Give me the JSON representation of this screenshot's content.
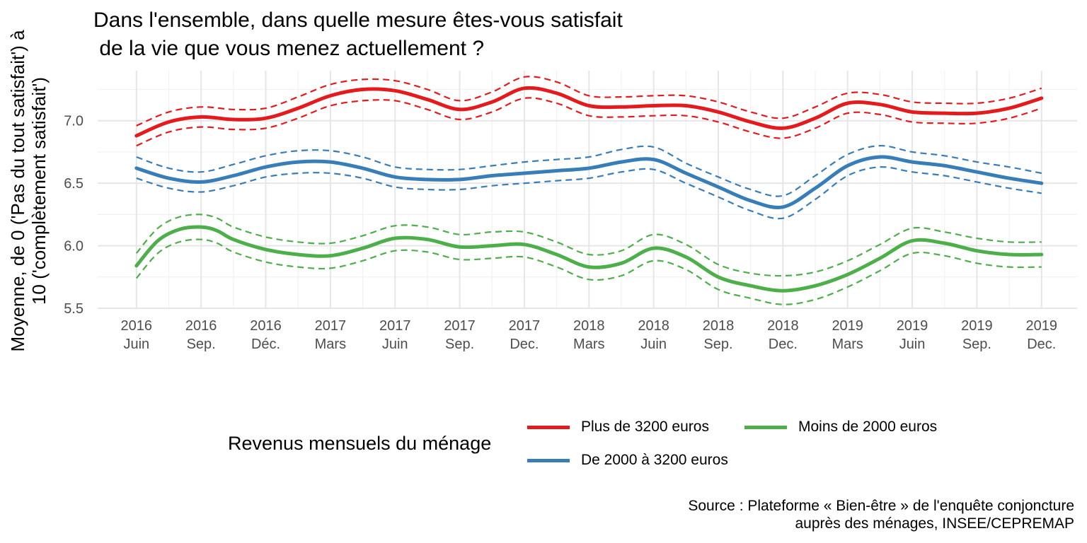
{
  "chart_data": {
    "type": "line",
    "title": [
      "Dans l'ensemble, dans quelle mesure êtes-vous satisfait",
      " de la vie que vous menez actuellement ?"
    ],
    "ylabel": [
      "Moyenne, de 0 ('Pas du tout satisfait') à",
      "10 ('complètement satisfait')"
    ],
    "xlabel": "",
    "ylim": [
      5.5,
      7.4
    ],
    "yticks": [
      5.5,
      6.0,
      6.5,
      7.0
    ],
    "ytick_labels": [
      "5.5",
      "6.0",
      "6.5",
      "7.0"
    ],
    "xlim": [
      -0.6,
      14.55
    ],
    "xticks": [
      {
        "x": 0,
        "year": "2016",
        "month": "Juin"
      },
      {
        "x": 1,
        "year": "2016",
        "month": "Sep."
      },
      {
        "x": 2,
        "year": "2016",
        "month": "Déc."
      },
      {
        "x": 3,
        "year": "2017",
        "month": "Mars"
      },
      {
        "x": 4,
        "year": "2017",
        "month": "Juin"
      },
      {
        "x": 5,
        "year": "2017",
        "month": "Sep."
      },
      {
        "x": 6,
        "year": "2017",
        "month": "Dec."
      },
      {
        "x": 7,
        "year": "2018",
        "month": "Mars"
      },
      {
        "x": 8,
        "year": "2018",
        "month": "Juin"
      },
      {
        "x": 9,
        "year": "2018",
        "month": "Sep."
      },
      {
        "x": 10,
        "year": "2018",
        "month": "Dec."
      },
      {
        "x": 11,
        "year": "2019",
        "month": "Mars"
      },
      {
        "x": 12,
        "year": "2019",
        "month": "Juin"
      },
      {
        "x": 13,
        "year": "2019",
        "month": "Sep."
      },
      {
        "x": 14,
        "year": "2019",
        "month": "Dec."
      }
    ],
    "grid": true,
    "legend": {
      "title": "Revenus mensuels du ménage",
      "placement": "bottom"
    },
    "series": [
      {
        "name": "Plus de 3200 euros",
        "color": "#e41a1c",
        "x": [
          0,
          0.5,
          1,
          1.5,
          2,
          2.5,
          3,
          3.5,
          4,
          4.5,
          5,
          5.5,
          6,
          6.5,
          7,
          7.5,
          8,
          8.5,
          9,
          9.5,
          10,
          10.5,
          11,
          11.5,
          12,
          12.5,
          13,
          13.5,
          14
        ],
        "values": [
          6.88,
          6.99,
          7.03,
          7.01,
          7.02,
          7.1,
          7.2,
          7.25,
          7.24,
          7.17,
          7.09,
          7.15,
          7.26,
          7.22,
          7.12,
          7.11,
          7.12,
          7.12,
          7.07,
          6.99,
          6.94,
          7.02,
          7.14,
          7.13,
          7.07,
          7.06,
          7.06,
          7.1,
          7.18
        ],
        "upper": [
          6.96,
          7.07,
          7.11,
          7.09,
          7.1,
          7.19,
          7.29,
          7.33,
          7.32,
          7.25,
          7.16,
          7.23,
          7.35,
          7.31,
          7.2,
          7.19,
          7.2,
          7.2,
          7.15,
          7.07,
          7.02,
          7.11,
          7.22,
          7.21,
          7.15,
          7.14,
          7.14,
          7.18,
          7.26
        ],
        "lower": [
          6.8,
          6.91,
          6.95,
          6.93,
          6.94,
          7.02,
          7.12,
          7.16,
          7.16,
          7.09,
          7.01,
          7.07,
          7.18,
          7.14,
          7.04,
          7.03,
          7.04,
          7.04,
          6.99,
          6.91,
          6.86,
          6.94,
          7.06,
          7.05,
          6.99,
          6.98,
          6.98,
          7.02,
          7.1
        ]
      },
      {
        "name": "De 2000 à 3200 euros",
        "color": "#377eb8",
        "x": [
          0,
          0.5,
          1,
          1.5,
          2,
          2.5,
          3,
          3.5,
          4,
          4.5,
          5,
          5.5,
          6,
          6.5,
          7,
          7.5,
          8,
          8.5,
          9,
          9.5,
          10,
          10.5,
          11,
          11.5,
          12,
          12.5,
          13,
          13.5,
          14
        ],
        "values": [
          6.62,
          6.54,
          6.51,
          6.56,
          6.63,
          6.67,
          6.67,
          6.62,
          6.55,
          6.53,
          6.53,
          6.56,
          6.58,
          6.6,
          6.62,
          6.67,
          6.69,
          6.58,
          6.47,
          6.36,
          6.31,
          6.46,
          6.64,
          6.71,
          6.67,
          6.64,
          6.59,
          6.54,
          6.5
        ],
        "upper": [
          6.71,
          6.62,
          6.59,
          6.65,
          6.72,
          6.76,
          6.76,
          6.71,
          6.63,
          6.61,
          6.61,
          6.64,
          6.67,
          6.69,
          6.71,
          6.77,
          6.79,
          6.66,
          6.55,
          6.45,
          6.4,
          6.56,
          6.73,
          6.8,
          6.75,
          6.72,
          6.67,
          6.63,
          6.58
        ],
        "lower": [
          6.54,
          6.46,
          6.43,
          6.48,
          6.55,
          6.58,
          6.58,
          6.54,
          6.47,
          6.45,
          6.45,
          6.48,
          6.5,
          6.52,
          6.54,
          6.59,
          6.61,
          6.5,
          6.39,
          6.28,
          6.22,
          6.37,
          6.56,
          6.63,
          6.59,
          6.56,
          6.51,
          6.46,
          6.42
        ]
      },
      {
        "name": "Moins de 2000 euros",
        "color": "#4daf4a",
        "x": [
          0,
          0.33,
          0.66,
          1,
          1.25,
          1.5,
          2,
          2.5,
          3,
          3.5,
          4,
          4.5,
          5,
          5.5,
          6,
          6.5,
          7,
          7.5,
          8,
          8.5,
          9,
          9.5,
          10,
          10.5,
          11,
          11.5,
          12,
          12.5,
          13,
          13.5,
          14
        ],
        "values": [
          5.84,
          6.04,
          6.13,
          6.15,
          6.12,
          6.05,
          5.97,
          5.93,
          5.92,
          5.98,
          6.06,
          6.05,
          5.99,
          6.0,
          6.01,
          5.93,
          5.83,
          5.86,
          5.98,
          5.91,
          5.75,
          5.68,
          5.64,
          5.68,
          5.77,
          5.9,
          6.04,
          6.02,
          5.96,
          5.93,
          5.93
        ],
        "upper": [
          5.94,
          6.14,
          6.23,
          6.25,
          6.22,
          6.15,
          6.07,
          6.03,
          6.02,
          6.08,
          6.16,
          6.15,
          6.09,
          6.11,
          6.11,
          6.03,
          5.93,
          5.96,
          6.09,
          6.01,
          5.85,
          5.78,
          5.76,
          5.79,
          5.88,
          6.01,
          6.14,
          6.11,
          6.06,
          6.03,
          6.03
        ],
        "lower": [
          5.74,
          5.94,
          6.03,
          6.05,
          6.02,
          5.95,
          5.87,
          5.83,
          5.82,
          5.88,
          5.96,
          5.95,
          5.89,
          5.9,
          5.91,
          5.83,
          5.73,
          5.76,
          5.88,
          5.81,
          5.65,
          5.58,
          5.53,
          5.57,
          5.67,
          5.8,
          5.94,
          5.92,
          5.86,
          5.83,
          5.83
        ]
      }
    ],
    "source": [
      "Source : Plateforme « Bien-être » de l'enquête conjoncture",
      "auprès des ménages, INSEE/CEPREMAP"
    ]
  }
}
